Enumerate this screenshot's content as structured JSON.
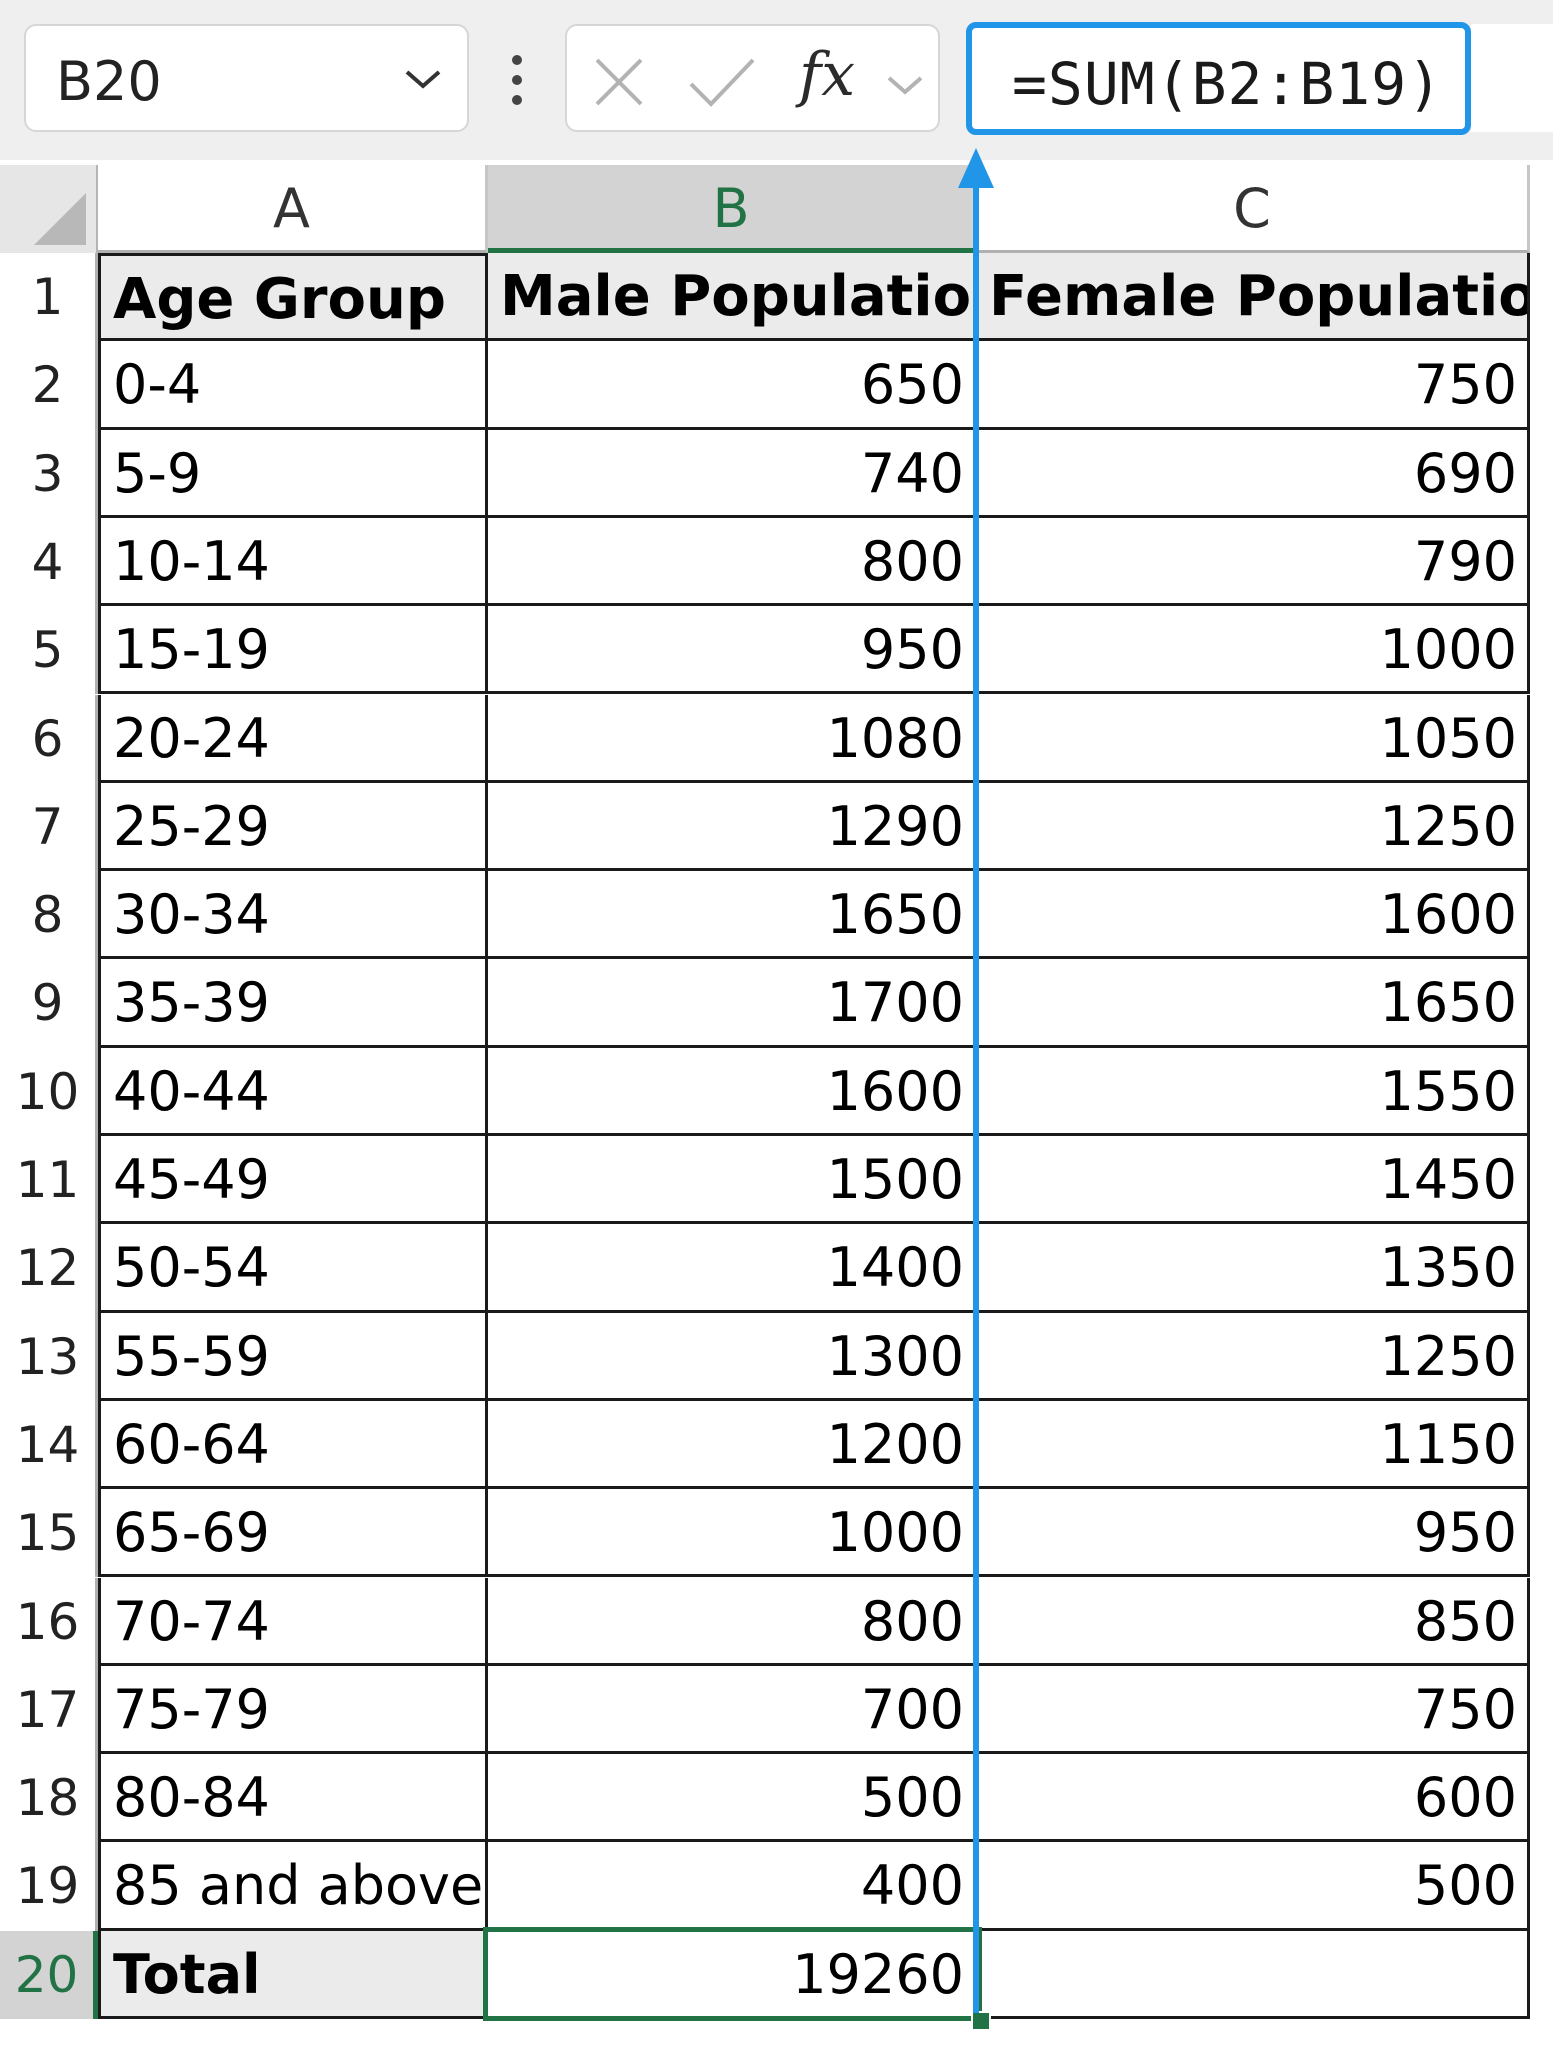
{
  "formula_bar": {
    "name_box": "B20",
    "fx_label": "fx",
    "formula": "=SUM(B2:B19)"
  },
  "columns": [
    "A",
    "B",
    "C"
  ],
  "active_column": "B",
  "active_cell": "B20",
  "headers": {
    "a": "Age Group",
    "b": "Male Population",
    "c": "Female Population"
  },
  "rows": [
    {
      "num": "1"
    },
    {
      "num": "2",
      "a": "0-4",
      "b": "650",
      "c": "750"
    },
    {
      "num": "3",
      "a": "5-9",
      "b": "740",
      "c": "690"
    },
    {
      "num": "4",
      "a": "10-14",
      "b": "800",
      "c": "790"
    },
    {
      "num": "5",
      "a": "15-19",
      "b": "950",
      "c": "1000"
    },
    {
      "num": "6",
      "a": "20-24",
      "b": "1080",
      "c": "1050"
    },
    {
      "num": "7",
      "a": "25-29",
      "b": "1290",
      "c": "1250"
    },
    {
      "num": "8",
      "a": "30-34",
      "b": "1650",
      "c": "1600"
    },
    {
      "num": "9",
      "a": "35-39",
      "b": "1700",
      "c": "1650"
    },
    {
      "num": "10",
      "a": "40-44",
      "b": "1600",
      "c": "1550"
    },
    {
      "num": "11",
      "a": "45-49",
      "b": "1500",
      "c": "1450"
    },
    {
      "num": "12",
      "a": "50-54",
      "b": "1400",
      "c": "1350"
    },
    {
      "num": "13",
      "a": "55-59",
      "b": "1300",
      "c": "1250"
    },
    {
      "num": "14",
      "a": "60-64",
      "b": "1200",
      "c": "1150"
    },
    {
      "num": "15",
      "a": "65-69",
      "b": "1000",
      "c": "950"
    },
    {
      "num": "16",
      "a": "70-74",
      "b": "800",
      "c": "850"
    },
    {
      "num": "17",
      "a": "75-79",
      "b": "700",
      "c": "750"
    },
    {
      "num": "18",
      "a": "80-84",
      "b": "500",
      "c": "600"
    },
    {
      "num": "19",
      "a": "85 and above",
      "b": "400",
      "c": "500"
    },
    {
      "num": "20",
      "a": "Total",
      "b": "19260",
      "c": ""
    }
  ],
  "colors": {
    "selection": "#217346",
    "formula_highlight": "#2196e8"
  }
}
